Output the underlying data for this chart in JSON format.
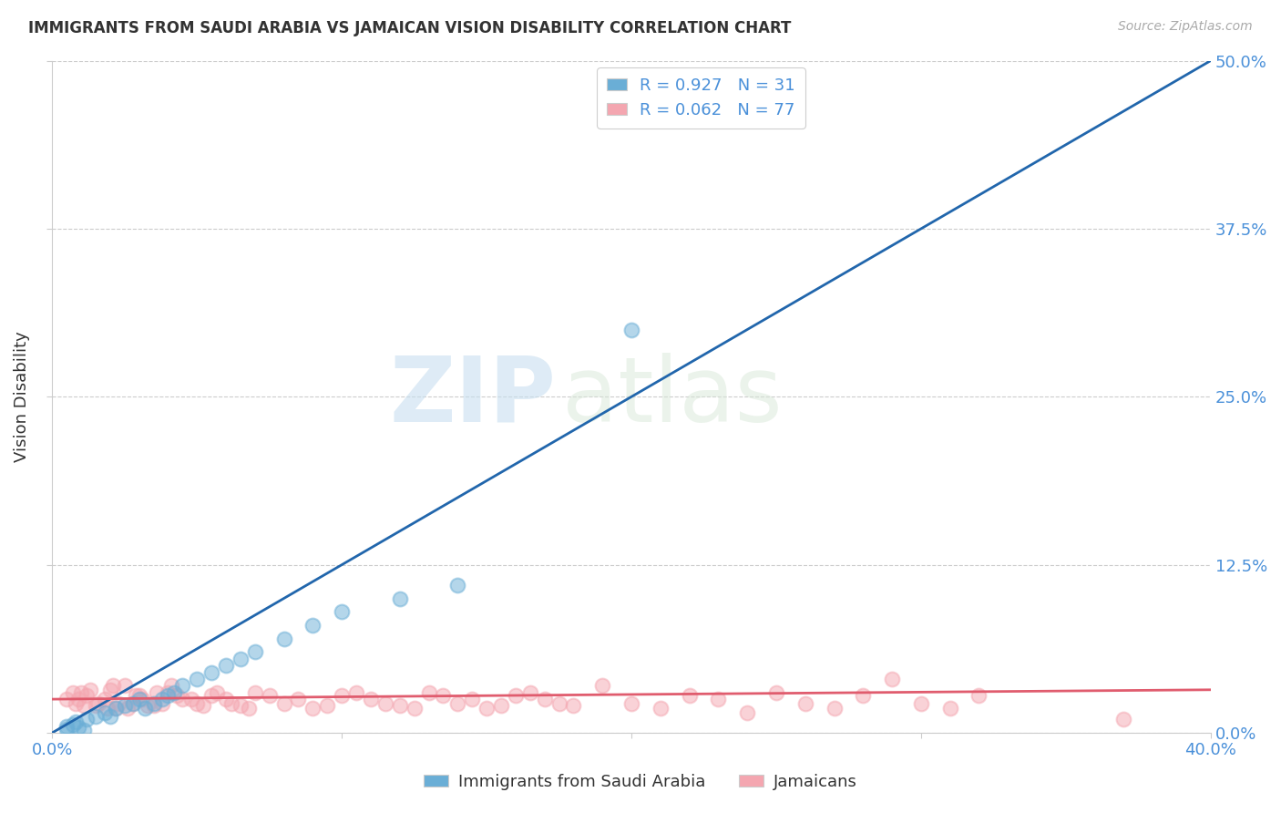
{
  "title": "IMMIGRANTS FROM SAUDI ARABIA VS JAMAICAN VISION DISABILITY CORRELATION CHART",
  "source": "Source: ZipAtlas.com",
  "ylabel": "Vision Disability",
  "ylabel_ticks": [
    "0.0%",
    "12.5%",
    "25.0%",
    "37.5%",
    "50.0%"
  ],
  "xlim": [
    0.0,
    0.4
  ],
  "ylim": [
    0.0,
    0.5
  ],
  "yticks": [
    0.0,
    0.125,
    0.25,
    0.375,
    0.5
  ],
  "xticks": [
    0.0,
    0.1,
    0.2,
    0.3,
    0.4
  ],
  "blue_color": "#6aaed6",
  "pink_color": "#f4a6b0",
  "blue_line_color": "#2166ac",
  "pink_line_color": "#e05c6e",
  "legend_R_blue": "0.927",
  "legend_N_blue": "31",
  "legend_R_pink": "0.062",
  "legend_N_pink": "77",
  "legend_label_blue": "Immigrants from Saudi Arabia",
  "legend_label_pink": "Jamaicans",
  "watermark_zip": "ZIP",
  "watermark_atlas": "atlas",
  "blue_scatter_x": [
    0.005,
    0.008,
    0.012,
    0.015,
    0.018,
    0.02,
    0.022,
    0.025,
    0.028,
    0.03,
    0.032,
    0.035,
    0.038,
    0.04,
    0.042,
    0.045,
    0.05,
    0.055,
    0.06,
    0.065,
    0.07,
    0.08,
    0.09,
    0.1,
    0.12,
    0.14,
    0.005,
    0.007,
    0.009,
    0.011,
    0.2
  ],
  "blue_scatter_y": [
    0.005,
    0.008,
    0.01,
    0.012,
    0.015,
    0.012,
    0.018,
    0.02,
    0.022,
    0.025,
    0.018,
    0.022,
    0.025,
    0.028,
    0.03,
    0.035,
    0.04,
    0.045,
    0.05,
    0.055,
    0.06,
    0.07,
    0.08,
    0.09,
    0.1,
    0.11,
    0.003,
    0.006,
    0.004,
    0.002,
    0.3
  ],
  "blue_trendline_x": [
    0.0,
    0.4
  ],
  "blue_trendline_y": [
    0.0,
    0.5
  ],
  "pink_trendline_x": [
    0.0,
    0.4
  ],
  "pink_trendline_y": [
    0.025,
    0.032
  ],
  "pink_scatter_x": [
    0.005,
    0.008,
    0.01,
    0.012,
    0.015,
    0.018,
    0.02,
    0.022,
    0.025,
    0.028,
    0.03,
    0.035,
    0.04,
    0.045,
    0.05,
    0.055,
    0.06,
    0.065,
    0.07,
    0.08,
    0.09,
    0.1,
    0.11,
    0.12,
    0.13,
    0.14,
    0.15,
    0.16,
    0.17,
    0.18,
    0.19,
    0.2,
    0.21,
    0.22,
    0.23,
    0.24,
    0.25,
    0.26,
    0.27,
    0.28,
    0.29,
    0.3,
    0.31,
    0.32,
    0.007,
    0.009,
    0.011,
    0.013,
    0.016,
    0.019,
    0.021,
    0.023,
    0.026,
    0.029,
    0.031,
    0.033,
    0.036,
    0.038,
    0.041,
    0.043,
    0.048,
    0.052,
    0.057,
    0.062,
    0.068,
    0.075,
    0.085,
    0.095,
    0.105,
    0.115,
    0.125,
    0.135,
    0.145,
    0.155,
    0.165,
    0.175,
    0.37
  ],
  "pink_scatter_y": [
    0.025,
    0.022,
    0.03,
    0.028,
    0.02,
    0.025,
    0.032,
    0.018,
    0.035,
    0.022,
    0.028,
    0.02,
    0.03,
    0.025,
    0.022,
    0.028,
    0.025,
    0.02,
    0.03,
    0.022,
    0.018,
    0.028,
    0.025,
    0.02,
    0.03,
    0.022,
    0.018,
    0.028,
    0.025,
    0.02,
    0.035,
    0.022,
    0.018,
    0.028,
    0.025,
    0.015,
    0.03,
    0.022,
    0.018,
    0.028,
    0.04,
    0.022,
    0.018,
    0.028,
    0.03,
    0.025,
    0.02,
    0.032,
    0.022,
    0.018,
    0.035,
    0.022,
    0.018,
    0.028,
    0.025,
    0.02,
    0.03,
    0.022,
    0.035,
    0.028,
    0.025,
    0.02,
    0.03,
    0.022,
    0.018,
    0.028,
    0.025,
    0.02,
    0.03,
    0.022,
    0.018,
    0.028,
    0.025,
    0.02,
    0.03,
    0.022,
    0.01
  ]
}
